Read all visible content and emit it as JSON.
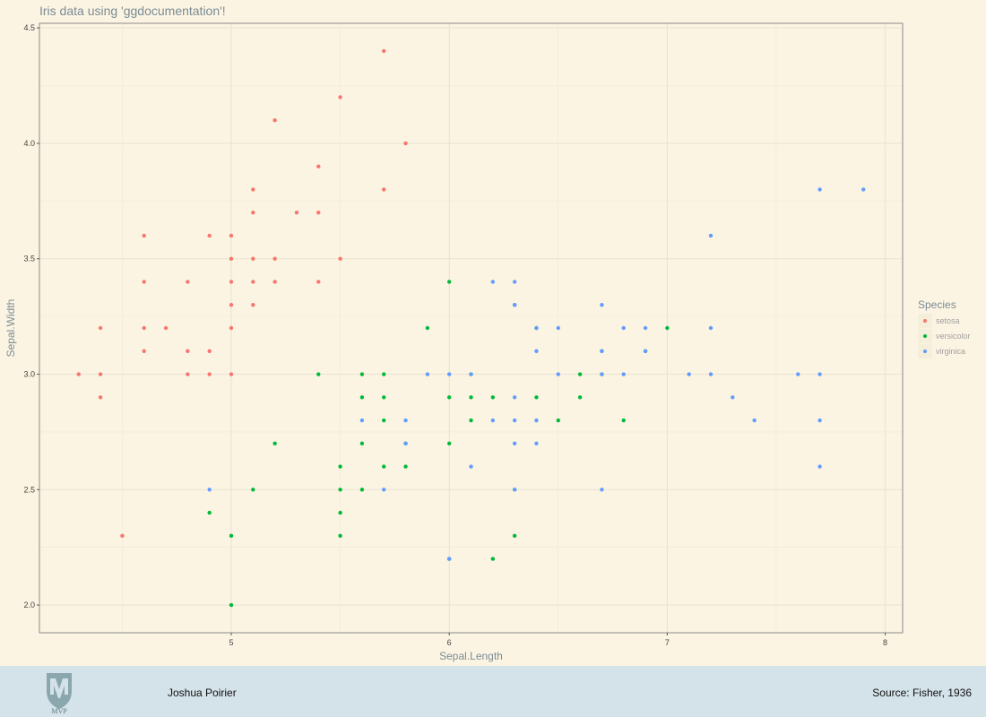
{
  "chart_data": {
    "type": "scatter",
    "title": "Iris data using 'ggdocumentation'!",
    "xlabel": "Sepal.Length",
    "ylabel": "Sepal.Width",
    "xlim": [
      4.12,
      8.08
    ],
    "ylim": [
      1.88,
      4.52
    ],
    "xticks": [
      5,
      6,
      7,
      8
    ],
    "yticks": [
      2.0,
      2.5,
      3.0,
      3.5,
      4.0,
      4.5
    ],
    "ytick_labels": [
      "2.0",
      "2.5",
      "3.0",
      "3.5",
      "4.0",
      "4.5"
    ],
    "grid": true,
    "legend": {
      "title": "Species",
      "position": "right"
    },
    "series": [
      {
        "name": "setosa",
        "color": "#f8766d",
        "points": [
          [
            4.3,
            3.0
          ],
          [
            4.4,
            2.9
          ],
          [
            4.4,
            3.0
          ],
          [
            4.4,
            3.2
          ],
          [
            4.5,
            2.3
          ],
          [
            4.6,
            3.1
          ],
          [
            4.6,
            3.2
          ],
          [
            4.6,
            3.4
          ],
          [
            4.6,
            3.6
          ],
          [
            4.7,
            3.2
          ],
          [
            4.8,
            3.0
          ],
          [
            4.8,
            3.1
          ],
          [
            4.8,
            3.4
          ],
          [
            4.9,
            3.0
          ],
          [
            4.9,
            3.1
          ],
          [
            4.9,
            3.6
          ],
          [
            5.0,
            3.0
          ],
          [
            5.0,
            3.2
          ],
          [
            5.0,
            3.3
          ],
          [
            5.0,
            3.4
          ],
          [
            5.0,
            3.5
          ],
          [
            5.0,
            3.6
          ],
          [
            5.1,
            3.3
          ],
          [
            5.1,
            3.4
          ],
          [
            5.1,
            3.5
          ],
          [
            5.1,
            3.7
          ],
          [
            5.1,
            3.8
          ],
          [
            5.2,
            3.4
          ],
          [
            5.2,
            3.5
          ],
          [
            5.2,
            4.1
          ],
          [
            5.3,
            3.7
          ],
          [
            5.4,
            3.4
          ],
          [
            5.4,
            3.7
          ],
          [
            5.4,
            3.9
          ],
          [
            5.5,
            3.5
          ],
          [
            5.5,
            4.2
          ],
          [
            5.7,
            3.8
          ],
          [
            5.7,
            4.4
          ],
          [
            5.8,
            4.0
          ]
        ]
      },
      {
        "name": "versicolor",
        "color": "#00ba38",
        "points": [
          [
            4.9,
            2.4
          ],
          [
            5.0,
            2.0
          ],
          [
            5.0,
            2.3
          ],
          [
            5.1,
            2.5
          ],
          [
            5.2,
            2.7
          ],
          [
            5.4,
            3.0
          ],
          [
            5.5,
            2.3
          ],
          [
            5.5,
            2.4
          ],
          [
            5.5,
            2.5
          ],
          [
            5.5,
            2.6
          ],
          [
            5.6,
            2.5
          ],
          [
            5.6,
            2.7
          ],
          [
            5.6,
            2.9
          ],
          [
            5.6,
            3.0
          ],
          [
            5.7,
            2.6
          ],
          [
            5.7,
            2.8
          ],
          [
            5.7,
            2.9
          ],
          [
            5.7,
            3.0
          ],
          [
            5.8,
            2.6
          ],
          [
            5.8,
            2.7
          ],
          [
            5.9,
            3.2
          ],
          [
            6.0,
            2.2
          ],
          [
            6.0,
            2.7
          ],
          [
            6.0,
            2.9
          ],
          [
            6.0,
            3.4
          ],
          [
            6.1,
            2.8
          ],
          [
            6.1,
            2.9
          ],
          [
            6.1,
            3.0
          ],
          [
            6.2,
            2.2
          ],
          [
            6.2,
            2.9
          ],
          [
            6.3,
            2.3
          ],
          [
            6.3,
            2.5
          ],
          [
            6.3,
            3.3
          ],
          [
            6.4,
            2.9
          ],
          [
            6.4,
            3.2
          ],
          [
            6.5,
            2.8
          ],
          [
            6.6,
            2.9
          ],
          [
            6.6,
            3.0
          ],
          [
            6.7,
            3.0
          ],
          [
            6.7,
            3.1
          ],
          [
            6.8,
            2.8
          ],
          [
            6.9,
            3.1
          ],
          [
            7.0,
            3.2
          ]
        ]
      },
      {
        "name": "virginica",
        "color": "#619cff",
        "points": [
          [
            4.9,
            2.5
          ],
          [
            5.6,
            2.8
          ],
          [
            5.7,
            2.5
          ],
          [
            5.8,
            2.7
          ],
          [
            5.8,
            2.8
          ],
          [
            5.9,
            3.0
          ],
          [
            6.0,
            2.2
          ],
          [
            6.0,
            3.0
          ],
          [
            6.1,
            2.6
          ],
          [
            6.1,
            3.0
          ],
          [
            6.2,
            2.8
          ],
          [
            6.2,
            3.4
          ],
          [
            6.3,
            2.5
          ],
          [
            6.3,
            2.7
          ],
          [
            6.3,
            2.8
          ],
          [
            6.3,
            2.9
          ],
          [
            6.3,
            3.3
          ],
          [
            6.3,
            3.4
          ],
          [
            6.4,
            2.7
          ],
          [
            6.4,
            2.8
          ],
          [
            6.4,
            3.1
          ],
          [
            6.4,
            3.2
          ],
          [
            6.5,
            3.0
          ],
          [
            6.5,
            3.2
          ],
          [
            6.7,
            2.5
          ],
          [
            6.7,
            3.0
          ],
          [
            6.7,
            3.1
          ],
          [
            6.7,
            3.3
          ],
          [
            6.8,
            3.0
          ],
          [
            6.8,
            3.2
          ],
          [
            6.9,
            3.1
          ],
          [
            6.9,
            3.2
          ],
          [
            7.1,
            3.0
          ],
          [
            7.2,
            3.0
          ],
          [
            7.2,
            3.2
          ],
          [
            7.2,
            3.6
          ],
          [
            7.3,
            2.9
          ],
          [
            7.4,
            2.8
          ],
          [
            7.6,
            3.0
          ],
          [
            7.7,
            2.6
          ],
          [
            7.7,
            2.8
          ],
          [
            7.7,
            3.0
          ],
          [
            7.7,
            3.8
          ],
          [
            7.9,
            3.8
          ]
        ]
      }
    ]
  },
  "footer": {
    "logo_text": "MVP",
    "author": "Joshua Poirier",
    "source": "Source: Fisher, 1936"
  }
}
